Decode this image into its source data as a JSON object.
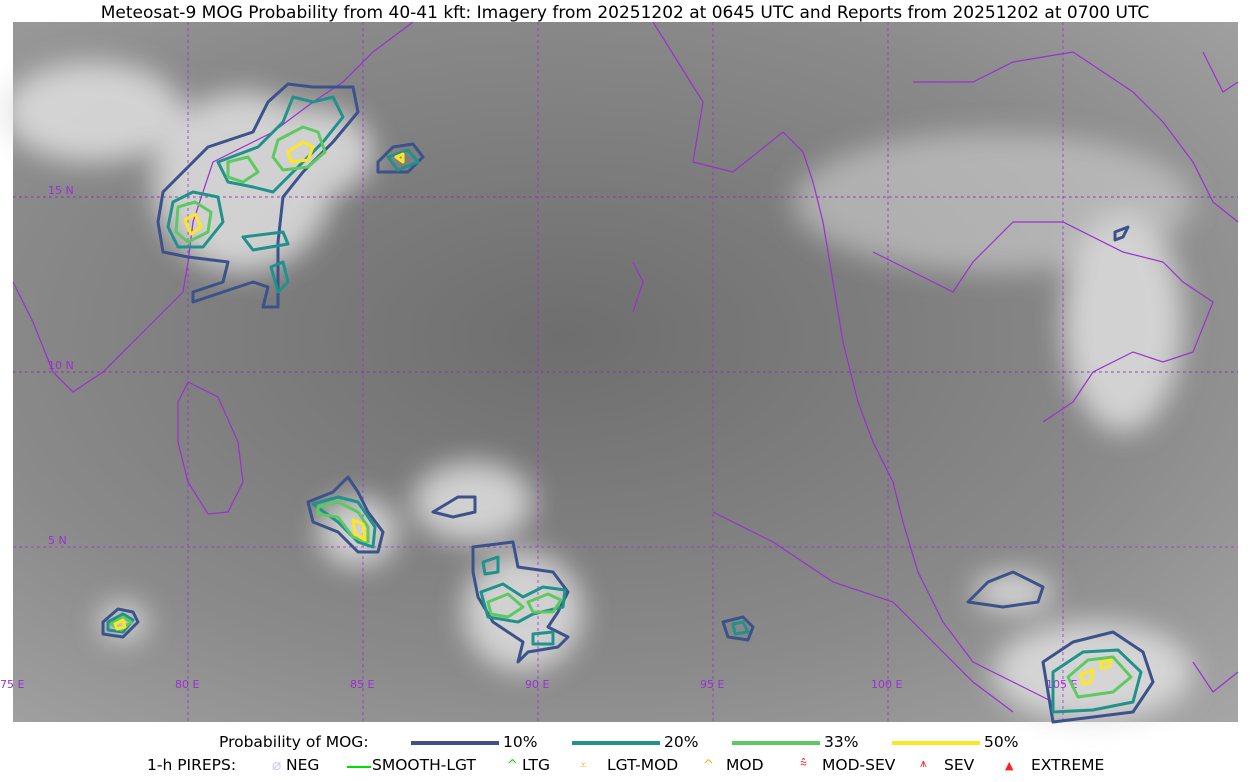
{
  "title": "Meteosat-9 MOG Probability from 40-41 kft: Imagery from 20251202 at 0645 UTC and Reports from 20251202 at 0700 UTC",
  "map": {
    "longitude_labels": [
      "75 E",
      "80 E",
      "85 E",
      "90 E",
      "95 E",
      "100 E",
      "105 E"
    ],
    "latitude_labels": [
      "15 N",
      "10 N",
      "5 N"
    ],
    "coastline_color": "#9b30d0",
    "gridline_color": "#9b30d0"
  },
  "legend": {
    "probability_title": "Probability of MOG:",
    "levels": [
      {
        "label": "10%",
        "color": "#3b528b"
      },
      {
        "label": "20%",
        "color": "#21918c"
      },
      {
        "label": "33%",
        "color": "#5ec962"
      },
      {
        "label": "50%",
        "color": "#fde725"
      }
    ],
    "pireps_title": "1-h PIREPS:",
    "pireps": [
      {
        "label": "NEG",
        "color": "#c8c8ff",
        "icon": "neg-circle-icon"
      },
      {
        "label": "SMOOTH-LGT",
        "color": "#00e000",
        "icon": "line-icon"
      },
      {
        "label": "LTG",
        "color": "#00e000",
        "icon": "caret-icon"
      },
      {
        "label": "LGT-MOD",
        "color": "#ffb020",
        "icon": "caret-bar-icon"
      },
      {
        "label": "MOD",
        "color": "#ffb020",
        "icon": "caret-icon"
      },
      {
        "label": "MOD-SEV",
        "color": "#ff2020",
        "icon": "double-caret-bar-icon"
      },
      {
        "label": "SEV",
        "color": "#ff2020",
        "icon": "double-caret-icon"
      },
      {
        "label": "EXTREME",
        "color": "#ff2020",
        "icon": "filled-triangle-icon"
      }
    ]
  }
}
